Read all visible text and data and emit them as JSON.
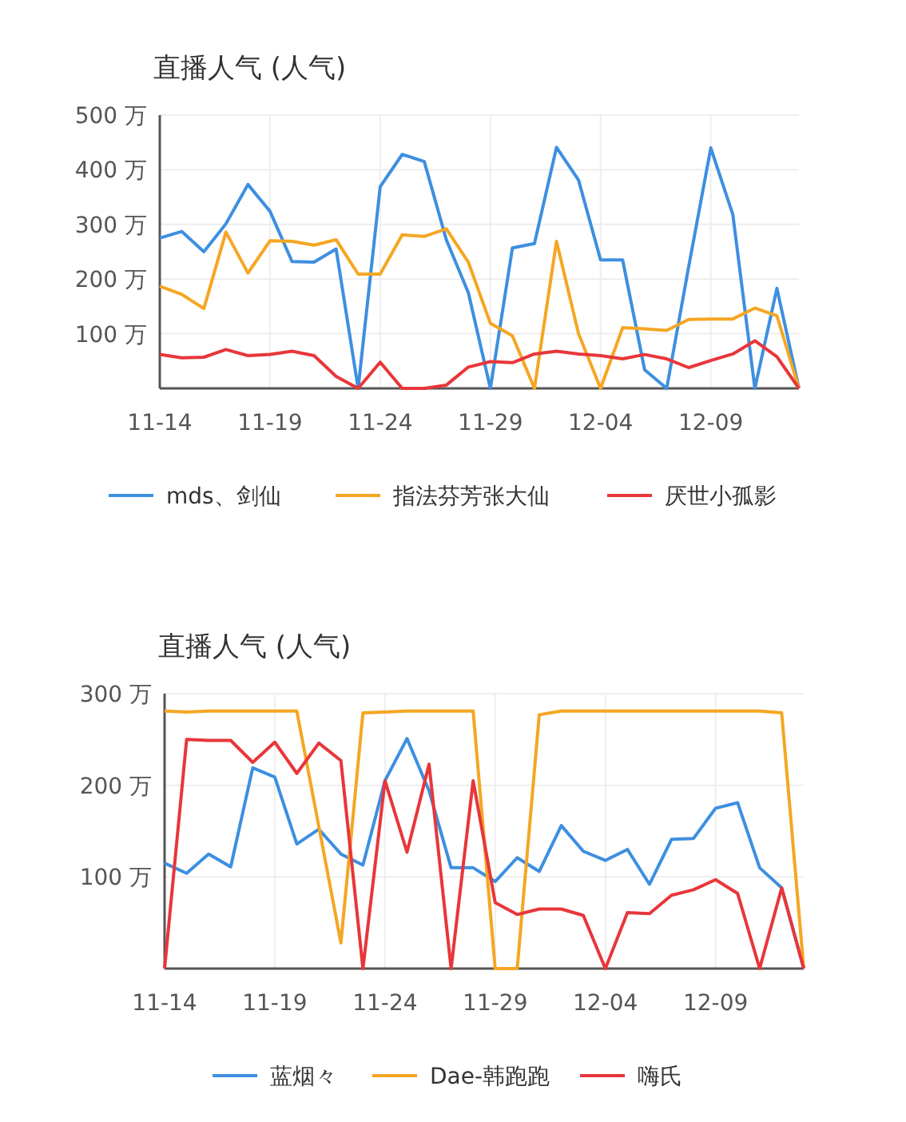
{
  "chart_data": [
    {
      "type": "line",
      "title": "直播人气 (人气)",
      "categories": [
        "11-14",
        null,
        null,
        null,
        null,
        "11-19",
        null,
        null,
        null,
        null,
        "11-24",
        null,
        null,
        null,
        null,
        "11-29",
        null,
        null,
        null,
        null,
        "12-04",
        null,
        null,
        null,
        null,
        "12-09",
        null,
        null,
        null,
        null
      ],
      "series": [
        {
          "name": "mds、剑仙",
          "color": "#3d8fe0",
          "values": [
            275,
            287,
            250,
            301,
            373,
            324,
            232,
            231,
            255,
            0,
            369,
            428,
            415,
            272,
            175,
            0,
            257,
            265,
            441,
            381,
            235,
            235,
            34,
            0,
            223,
            440,
            318,
            0,
            183,
            0
          ]
        },
        {
          "name": "指法芬芳张大仙",
          "color": "#f5a623",
          "values": [
            187,
            172,
            146,
            286,
            211,
            270,
            269,
            262,
            272,
            209,
            209,
            281,
            278,
            292,
            231,
            119,
            96,
            0,
            269,
            100,
            0,
            111,
            109,
            106,
            126,
            127,
            127,
            147,
            133,
            0
          ]
        },
        {
          "name": "厌世小孤影",
          "color": "#e8363a",
          "values": [
            62,
            56,
            57,
            71,
            60,
            62,
            68,
            60,
            22,
            0,
            48,
            0,
            0,
            6,
            39,
            49,
            47,
            63,
            68,
            63,
            60,
            54,
            62,
            54,
            38,
            51,
            63,
            87,
            58,
            0
          ]
        }
      ],
      "ylim": [
        0,
        500
      ],
      "yticks": [
        {
          "value": 100,
          "label": "100 万"
        },
        {
          "value": 200,
          "label": "200 万"
        },
        {
          "value": 300,
          "label": "300 万"
        },
        {
          "value": 400,
          "label": "400 万"
        },
        {
          "value": 500,
          "label": "500 万"
        }
      ],
      "grid": true,
      "legend": "bottom",
      "marker": "none",
      "line_style": "solid"
    },
    {
      "type": "line",
      "title": "直播人气 (人气)",
      "categories": [
        "11-14",
        null,
        null,
        null,
        null,
        "11-19",
        null,
        null,
        null,
        null,
        "11-24",
        null,
        null,
        null,
        null,
        "11-29",
        null,
        null,
        null,
        null,
        "12-04",
        null,
        null,
        null,
        null,
        "12-09",
        null,
        null,
        null,
        null
      ],
      "series": [
        {
          "name": "蓝烟々",
          "color": "#3d8fe0",
          "values": [
            115,
            104,
            125,
            111,
            219,
            209,
            136,
            152,
            125,
            113,
            205,
            251,
            194,
            110,
            110,
            95,
            121,
            106,
            156,
            128,
            118,
            130,
            92,
            141,
            142,
            175,
            181,
            110,
            88,
            0
          ]
        },
        {
          "name": "Dae-韩跑跑",
          "color": "#f5a623",
          "values": [
            281,
            280,
            281,
            281,
            281,
            281,
            281,
            155,
            28,
            279,
            280,
            281,
            281,
            281,
            281,
            0,
            0,
            277,
            281,
            281,
            281,
            281,
            281,
            281,
            281,
            281,
            281,
            281,
            279,
            0
          ]
        },
        {
          "name": "嗨氏",
          "color": "#e8363a",
          "values": [
            0,
            250,
            249,
            249,
            225,
            247,
            213,
            246,
            227,
            0,
            205,
            127,
            223,
            0,
            205,
            72,
            59,
            65,
            65,
            58,
            0,
            61,
            60,
            80,
            86,
            97,
            82,
            0,
            88,
            0
          ]
        }
      ],
      "ylim": [
        0,
        300
      ],
      "yticks": [
        {
          "value": 100,
          "label": "100 万"
        },
        {
          "value": 200,
          "label": "200 万"
        },
        {
          "value": 300,
          "label": "300 万"
        }
      ],
      "grid": true,
      "legend": "bottom",
      "marker": "none",
      "line_style": "solid"
    }
  ]
}
